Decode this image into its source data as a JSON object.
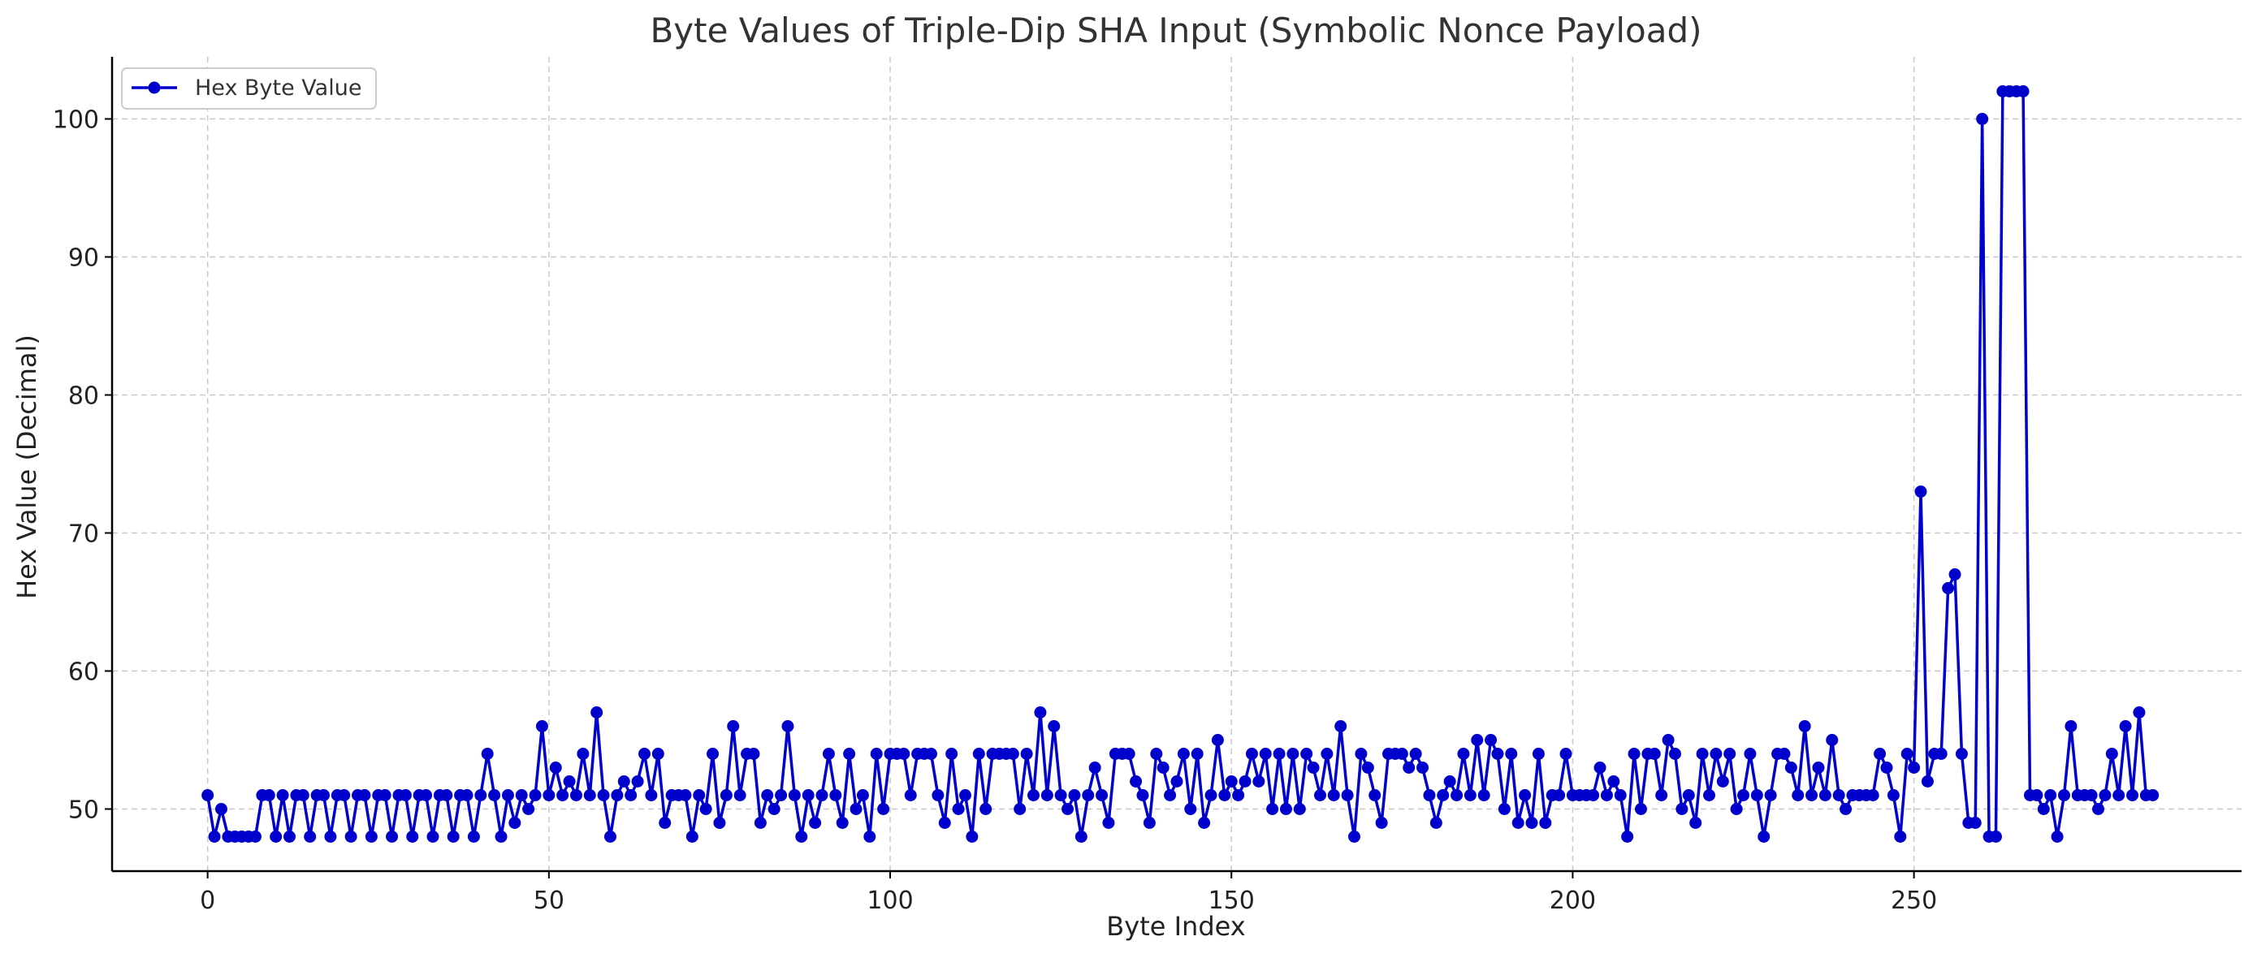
{
  "chart_data": {
    "type": "line",
    "title": "Byte Values of Triple-Dip SHA Input (Symbolic Nonce Payload)",
    "xlabel": "Byte Index",
    "ylabel": "Hex Value (Decimal)",
    "xlim": [
      -14,
      298
    ],
    "ylim": [
      45.5,
      104.5
    ],
    "xticks": [
      0,
      50,
      100,
      150,
      200,
      250
    ],
    "yticks": [
      50,
      60,
      70,
      80,
      90,
      100
    ],
    "grid": true,
    "legend_position": "top-left",
    "marker": "circle",
    "series": [
      {
        "name": "Hex Byte Value",
        "color": "#0000cc",
        "y": [
          51,
          48,
          50,
          48,
          48,
          48,
          48,
          48,
          51,
          51,
          48,
          51,
          48,
          51,
          51,
          48,
          51,
          51,
          48,
          51,
          51,
          48,
          51,
          51,
          48,
          51,
          51,
          48,
          51,
          51,
          48,
          51,
          51,
          48,
          51,
          51,
          48,
          51,
          51,
          48,
          51,
          54,
          51,
          48,
          51,
          49,
          51,
          50,
          51,
          56,
          51,
          53,
          51,
          52,
          51,
          54,
          51,
          57,
          51,
          48,
          51,
          52,
          51,
          52,
          54,
          51,
          54,
          49,
          51,
          51,
          51,
          48,
          51,
          50,
          54,
          49,
          51,
          56,
          51,
          54,
          54,
          49,
          51,
          50,
          51,
          56,
          51,
          48,
          51,
          49,
          51,
          54,
          51,
          49,
          54,
          50,
          51,
          48,
          54,
          50,
          54,
          54,
          54,
          51,
          54,
          54,
          54,
          51,
          49,
          54,
          50,
          51,
          48,
          54,
          50,
          54,
          54,
          54,
          54,
          50,
          54,
          51,
          57,
          51,
          56,
          51,
          50,
          51,
          48,
          51,
          53,
          51,
          49,
          54,
          54,
          54,
          52,
          51,
          49,
          54,
          53,
          51,
          52,
          54,
          50,
          54,
          49,
          51,
          55,
          51,
          52,
          51,
          52,
          54,
          52,
          54,
          50,
          54,
          50,
          54,
          50,
          54,
          53,
          51,
          54,
          51,
          56,
          51,
          48,
          54,
          53,
          51,
          49,
          54,
          54,
          54,
          53,
          54,
          53,
          51,
          49,
          51,
          52,
          51,
          54,
          51,
          55,
          51,
          55,
          54,
          50,
          54,
          49,
          51,
          49,
          54,
          49,
          51,
          51,
          54,
          51,
          51,
          51,
          51,
          53,
          51,
          52,
          51,
          48,
          54,
          50,
          54,
          54,
          51,
          55,
          54,
          50,
          51,
          49,
          54,
          51,
          54,
          52,
          54,
          50,
          51,
          54,
          51,
          48,
          51,
          54,
          54,
          53,
          51,
          56,
          51,
          53,
          51,
          55,
          51,
          50,
          51,
          51,
          51,
          51,
          54,
          53,
          51,
          48,
          54,
          53,
          73,
          52,
          54,
          54,
          66,
          67,
          54,
          49,
          49,
          100,
          48,
          48,
          102,
          102,
          102,
          102,
          51,
          51,
          50,
          51,
          48,
          51,
          56,
          51,
          51,
          51,
          50,
          51,
          54,
          51,
          56,
          51,
          57,
          51,
          51
        ]
      }
    ]
  }
}
